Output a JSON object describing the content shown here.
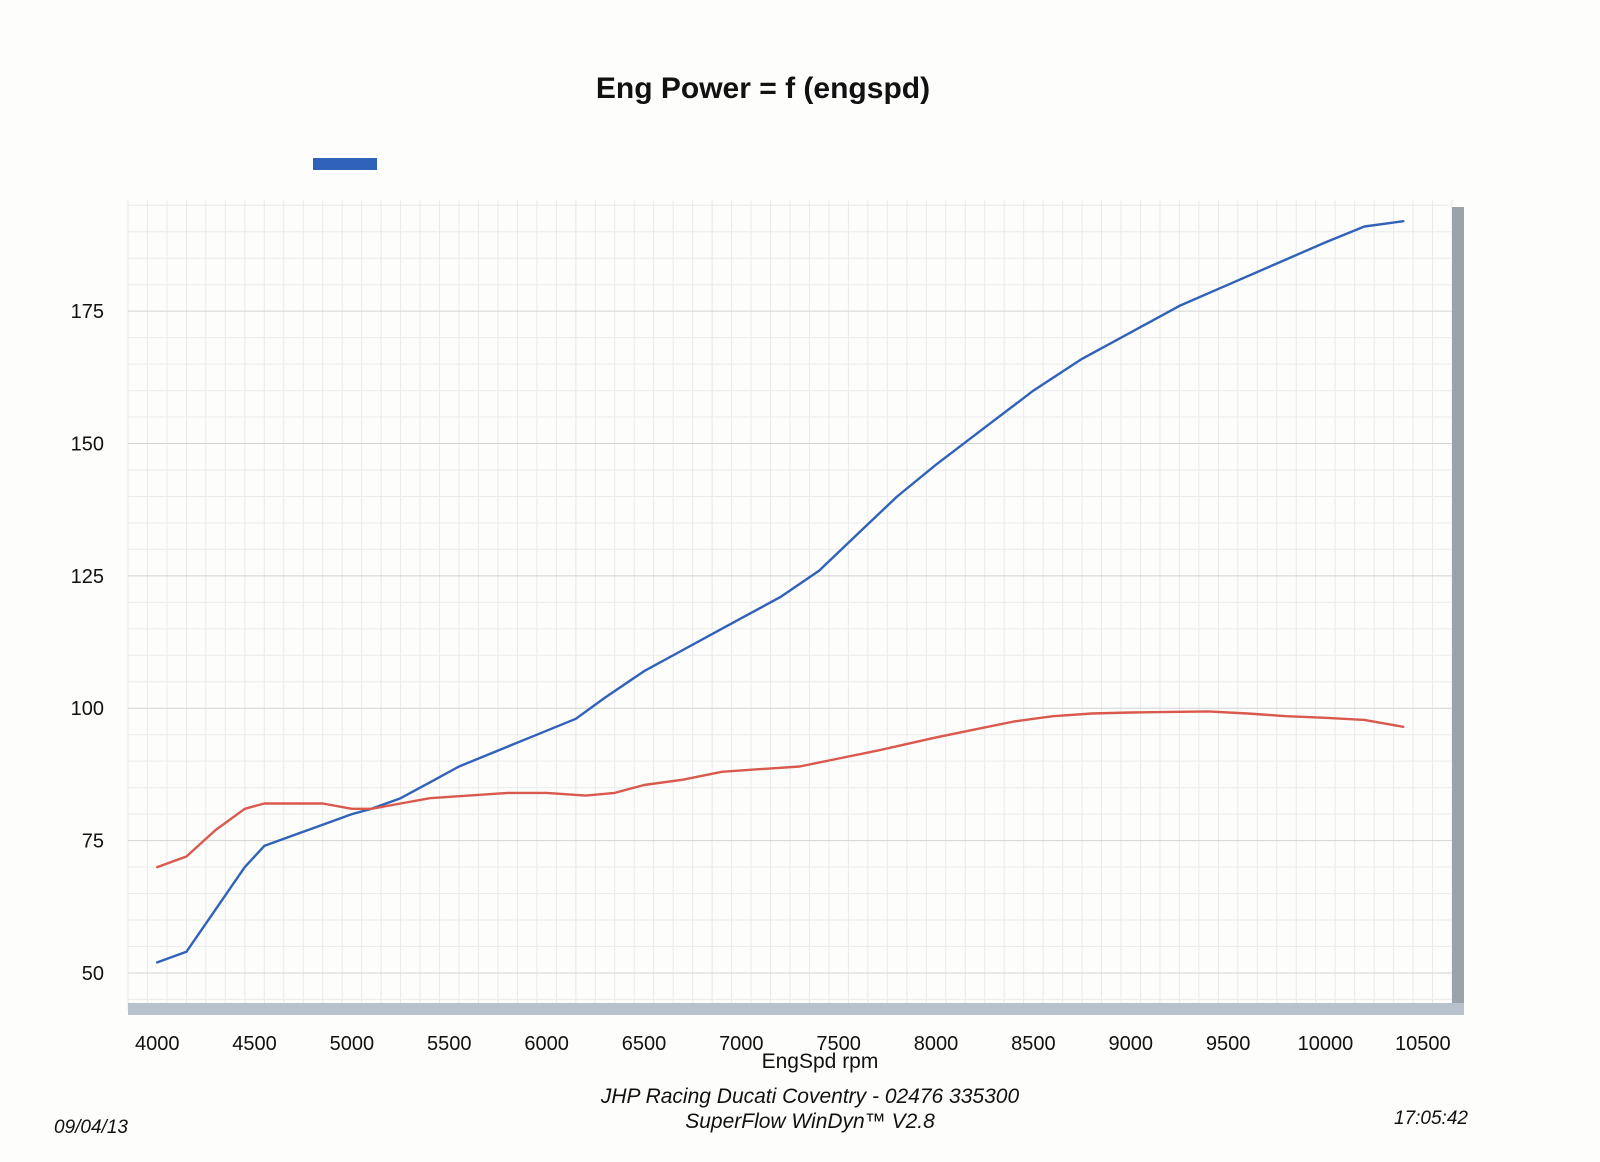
{
  "chart_data": {
    "type": "line",
    "title": "Eng Power = f (engspd)",
    "xlabel": "EngSpd  rpm",
    "ylabel": "",
    "xlim": [
      3850,
      10650
    ],
    "ylim": [
      43,
      196
    ],
    "x_ticks": [
      4000,
      4500,
      5000,
      5500,
      6000,
      6500,
      7000,
      7500,
      8000,
      8500,
      9000,
      9500,
      10000,
      10500
    ],
    "y_ticks": [
      50,
      75,
      100,
      125,
      150,
      175
    ],
    "grid": true,
    "legend": "top-left",
    "series": [
      {
        "name": "",
        "color": "#2f62b8",
        "x": [
          4000,
          4150,
          4300,
          4450,
          4550,
          4700,
          4850,
          5000,
          5100,
          5250,
          5400,
          5550,
          5750,
          5950,
          6150,
          6300,
          6500,
          6700,
          6850,
          7000,
          7200,
          7400,
          7600,
          7800,
          8000,
          8250,
          8500,
          8750,
          9000,
          9250,
          9500,
          9750,
          10000,
          10200,
          10400
        ],
        "values": [
          52,
          54,
          62,
          70,
          74,
          76,
          78,
          80,
          81,
          83,
          86,
          89,
          92,
          95,
          98,
          102,
          107,
          111,
          114,
          117,
          121,
          126,
          133,
          140,
          146,
          153,
          160,
          166,
          171,
          176,
          180,
          184,
          188,
          191,
          192
        ]
      },
      {
        "name": "",
        "color": "#d9594c",
        "x": [
          4000,
          4150,
          4300,
          4450,
          4550,
          4700,
          4850,
          5000,
          5100,
          5250,
          5400,
          5600,
          5800,
          6000,
          6200,
          6350,
          6500,
          6700,
          6900,
          7100,
          7300,
          7500,
          7700,
          8000,
          8200,
          8400,
          8600,
          8800,
          9000,
          9200,
          9400,
          9600,
          9800,
          10000,
          10200,
          10400
        ],
        "values": [
          70,
          72,
          77,
          81,
          82,
          82,
          82,
          81,
          81,
          82,
          83,
          83.5,
          84,
          84,
          83.5,
          84,
          85.5,
          86.5,
          88,
          88.5,
          89,
          90.5,
          92,
          94.5,
          96,
          97.5,
          98.5,
          99,
          99.2,
          99.3,
          99.4,
          99,
          98.5,
          98.2,
          97.8,
          96.5
        ]
      }
    ]
  },
  "footer": {
    "line1": "JHP Racing Ducati Coventry - 02476 335300",
    "line2": "SuperFlow WinDyn™ V2.8",
    "date": "09/04/13",
    "time": "17:05:42"
  }
}
